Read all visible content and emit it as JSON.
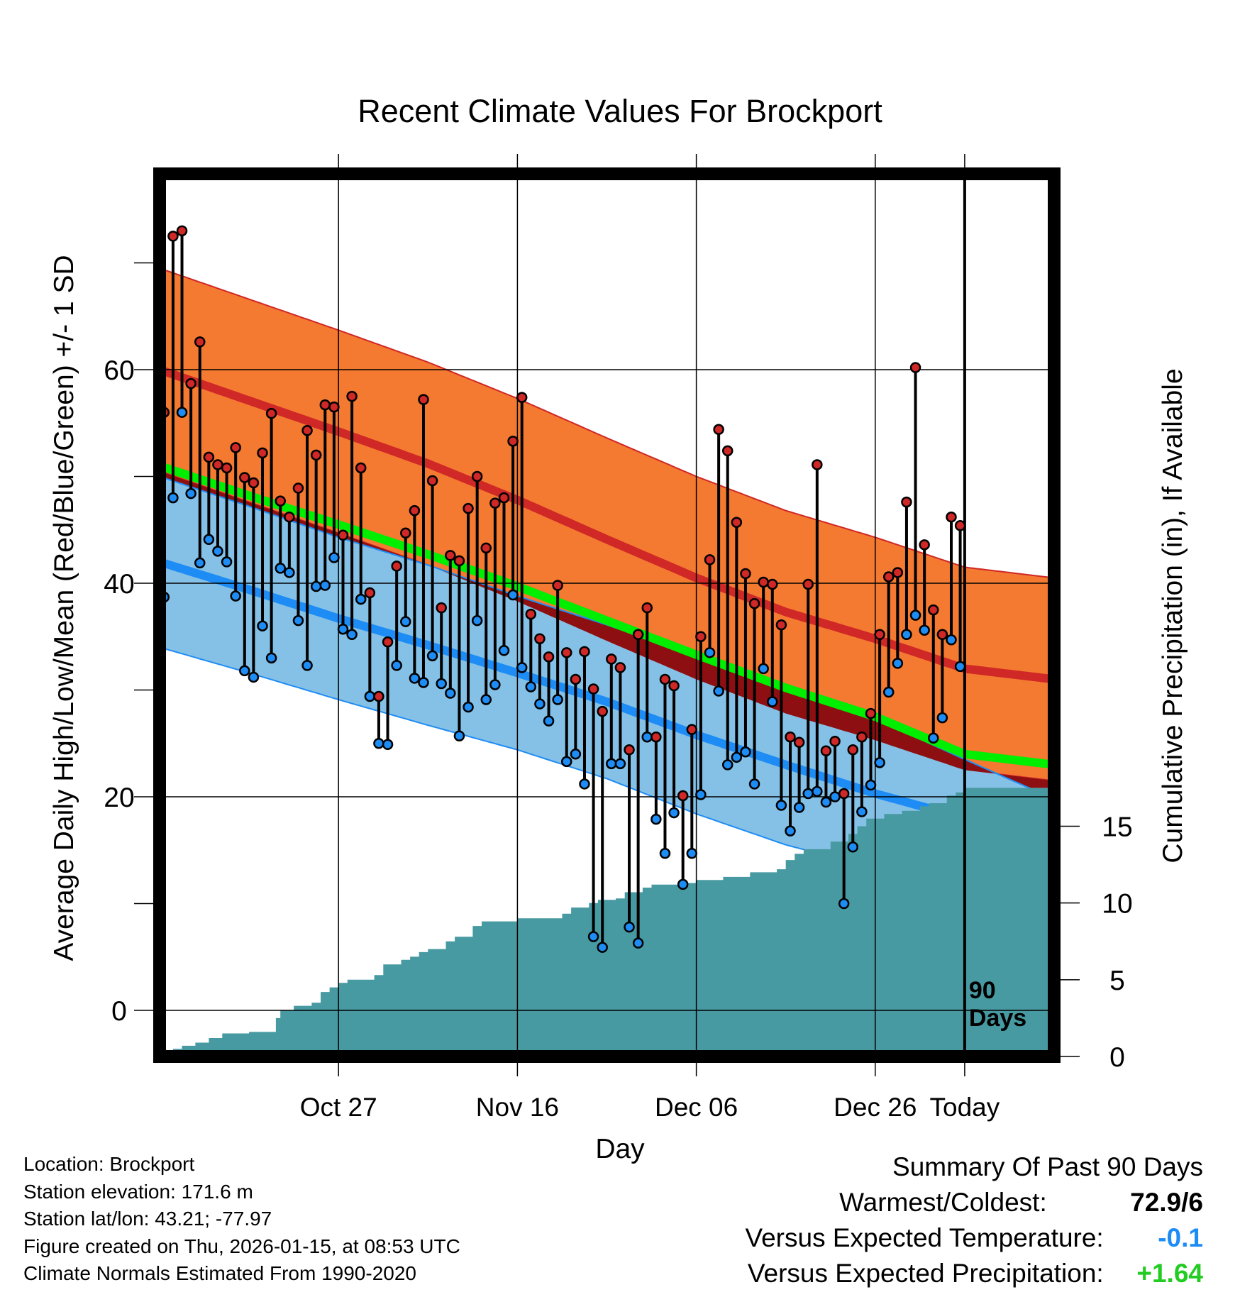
{
  "chart_data": {
    "type": "line",
    "title": "Recent Climate Values For Brockport",
    "xlabel": "Day",
    "ylabel_left": "Average Daily High/Low/Mean (Red/Blue/Green) +/- 1 SD",
    "ylabel_right": "Cumulative Precipitation (in), If Available",
    "x_tick_labels": [
      "Oct 27",
      "Nov 16",
      "Dec 06",
      "Dec 26",
      "Today"
    ],
    "y_left_ticks": [
      0,
      20,
      40,
      60
    ],
    "y_left_range": [
      -4,
      78
    ],
    "y_right_ticks": [
      0,
      5,
      10,
      15
    ],
    "y_right_range": [
      0,
      57.5
    ],
    "day_range": [
      -90,
      10
    ],
    "today_marker_label": [
      "90",
      "Days"
    ],
    "colors": {
      "high_band": "#f37a30",
      "high_mean": "#d02727",
      "low_band": "#85c1e6",
      "low_mean": "#1e8cf5",
      "overlap": "#8e0f12",
      "mean": "#00ee00",
      "precip": "#489aa2",
      "high_dot": "#d02727",
      "low_dot": "#1e8cf5"
    },
    "normals": {
      "days": [
        -90,
        -80,
        -70,
        -60,
        -50,
        -40,
        -30,
        -20,
        -10,
        0,
        10
      ],
      "high_mean": [
        60,
        57.1,
        54.2,
        51.2,
        47.8,
        44.1,
        40.5,
        37.3,
        34.8,
        32.0,
        31.0
      ],
      "high_sd": 9.5,
      "low_mean": [
        42,
        39.4,
        36.7,
        34.2,
        31.6,
        28.9,
        25.8,
        23.0,
        20.3,
        18.0,
        15.0
      ],
      "low_sd": [
        8,
        7.8,
        7.6,
        7.5,
        7.2,
        7.2,
        7.4,
        7.5,
        7.0,
        5.5,
        4.8
      ],
      "avg_mean": [
        51,
        48.2,
        45.5,
        42.7,
        39.7,
        36.5,
        33.3,
        30.2,
        27.5,
        24.0,
        23.0
      ]
    },
    "high_low_series": [
      [
        56,
        38.7
      ],
      [
        72.5,
        48
      ],
      [
        73,
        56
      ],
      [
        58.7,
        48.4
      ],
      [
        62.6,
        41.9
      ],
      [
        51.8,
        44.1
      ],
      [
        51.1,
        43
      ],
      [
        50.8,
        42
      ],
      [
        52.7,
        38.8
      ],
      [
        49.9,
        31.8
      ],
      [
        49.4,
        31.2
      ],
      [
        52.2,
        36
      ],
      [
        55.9,
        33
      ],
      [
        47.7,
        41.4
      ],
      [
        46.2,
        41
      ],
      [
        48.9,
        36.5
      ],
      [
        54.3,
        32.3
      ],
      [
        52,
        39.7
      ],
      [
        56.7,
        39.8
      ],
      [
        56.5,
        42.4
      ],
      [
        44.5,
        35.7
      ],
      [
        57.5,
        35.2
      ],
      [
        50.8,
        38.5
      ],
      [
        39.1,
        29.4
      ],
      [
        29.4,
        25
      ],
      [
        34.5,
        24.9
      ],
      [
        41.6,
        32.3
      ],
      [
        44.7,
        36.4
      ],
      [
        46.8,
        31.1
      ],
      [
        57.2,
        30.7
      ],
      [
        49.6,
        33.2
      ],
      [
        37.7,
        30.6
      ],
      [
        42.6,
        29.7
      ],
      [
        42.1,
        25.7
      ],
      [
        47,
        28.4
      ],
      [
        50,
        36.5
      ],
      [
        43.3,
        29.1
      ],
      [
        47.5,
        30.5
      ],
      [
        48,
        33.7
      ],
      [
        53.3,
        38.9
      ],
      [
        57.4,
        32.1
      ],
      [
        37.1,
        30.3
      ],
      [
        34.8,
        28.7
      ],
      [
        33.1,
        27.1
      ],
      [
        39.8,
        29.1
      ],
      [
        33.5,
        23.3
      ],
      [
        31,
        24
      ],
      [
        33.6,
        21.2
      ],
      [
        30.1,
        6.9
      ],
      [
        28,
        5.9
      ],
      [
        32.9,
        23.1
      ],
      [
        32.1,
        23.1
      ],
      [
        24.4,
        7.8
      ],
      [
        35.2,
        6.3
      ],
      [
        37.7,
        25.6
      ],
      [
        25.6,
        17.9
      ],
      [
        31,
        14.7
      ],
      [
        30.4,
        18.5
      ],
      [
        20.1,
        11.8
      ],
      [
        26.3,
        14.7
      ],
      [
        35,
        20.2
      ],
      [
        42.2,
        33.5
      ],
      [
        54.4,
        29.9
      ],
      [
        52.4,
        23
      ],
      [
        45.7,
        23.7
      ],
      [
        40.9,
        24.2
      ],
      [
        38.1,
        21.2
      ],
      [
        40.1,
        32
      ],
      [
        39.9,
        28.9
      ],
      [
        36.1,
        19.2
      ],
      [
        25.6,
        16.8
      ],
      [
        25.1,
        19
      ],
      [
        39.9,
        20.3
      ],
      [
        51.1,
        20.5
      ],
      [
        24.3,
        19.5
      ],
      [
        25.2,
        20
      ],
      [
        20.3,
        10
      ],
      [
        24.4,
        15.3
      ],
      [
        25.6,
        18.6
      ],
      [
        27.8,
        21.1
      ],
      [
        35.2,
        23.2
      ],
      [
        40.6,
        29.8
      ],
      [
        41,
        32.5
      ],
      [
        47.6,
        35.2
      ],
      [
        60.2,
        37
      ],
      [
        43.6,
        35.6
      ],
      [
        37.5,
        25.5
      ],
      [
        35.2,
        27.4
      ],
      [
        46.2,
        34.7
      ],
      [
        45.4,
        32.2
      ]
    ],
    "precipitation_steps": [
      [
        -88.5,
        0.5
      ],
      [
        -87.5,
        0.7
      ],
      [
        -86,
        0.9
      ],
      [
        -84.5,
        1.2
      ],
      [
        -83,
        1.5
      ],
      [
        -80,
        1.6
      ],
      [
        -77,
        2.5
      ],
      [
        -76.5,
        3.0
      ],
      [
        -75,
        3.3
      ],
      [
        -73,
        3.5
      ],
      [
        -72,
        4.2
      ],
      [
        -71,
        4.5
      ],
      [
        -70,
        4.8
      ],
      [
        -69,
        5.0
      ],
      [
        -66,
        5.3
      ],
      [
        -65,
        6.0
      ],
      [
        -63,
        6.3
      ],
      [
        -62,
        6.5
      ],
      [
        -61,
        6.8
      ],
      [
        -60,
        7.0
      ],
      [
        -58,
        7.5
      ],
      [
        -57,
        7.8
      ],
      [
        -55,
        8.5
      ],
      [
        -54,
        8.8
      ],
      [
        -50,
        9.0
      ],
      [
        -47,
        9.0
      ],
      [
        -45,
        9.3
      ],
      [
        -44,
        9.7
      ],
      [
        -42,
        10.0
      ],
      [
        -41,
        10.2
      ],
      [
        -39,
        10.3
      ],
      [
        -38,
        10.7
      ],
      [
        -36,
        11.0
      ],
      [
        -35,
        11.2
      ],
      [
        -31,
        11.3
      ],
      [
        -30,
        11.5
      ],
      [
        -27,
        11.7
      ],
      [
        -26,
        11.7
      ],
      [
        -24,
        12.0
      ],
      [
        -21,
        12.2
      ],
      [
        -20,
        12.8
      ],
      [
        -19,
        13.2
      ],
      [
        -18,
        13.5
      ],
      [
        -16,
        13.5
      ],
      [
        -15,
        14.0
      ],
      [
        -13,
        14.5
      ],
      [
        -12,
        15.0
      ],
      [
        -11,
        15.5
      ],
      [
        -9,
        15.8
      ],
      [
        -7,
        16.0
      ],
      [
        -5,
        16.3
      ],
      [
        -4,
        16.5
      ],
      [
        -2,
        17.0
      ],
      [
        -1,
        17.2
      ],
      [
        0,
        17.5
      ],
      [
        10,
        17.5
      ]
    ]
  },
  "footer": {
    "location": "Location: Brockport",
    "elevation": "Station elevation: 171.6 m",
    "latlon": "Station lat/lon: 43.21; -77.97",
    "created": "Figure created on Thu, 2026-01-15, at 08:53 UTC",
    "normals": "Climate Normals Estimated From 1990-2020"
  },
  "summary": {
    "title": "Summary Of Past 90 Days",
    "warmest_label": "Warmest/Coldest:",
    "warmest_value": "72.9/6",
    "temp_label": "Versus Expected Temperature:",
    "temp_value": "-0.1",
    "temp_color": "#1e8cf5",
    "precip_label": "Versus Expected Precipitation:",
    "precip_value": "+1.64",
    "precip_color": "#22cc22"
  }
}
